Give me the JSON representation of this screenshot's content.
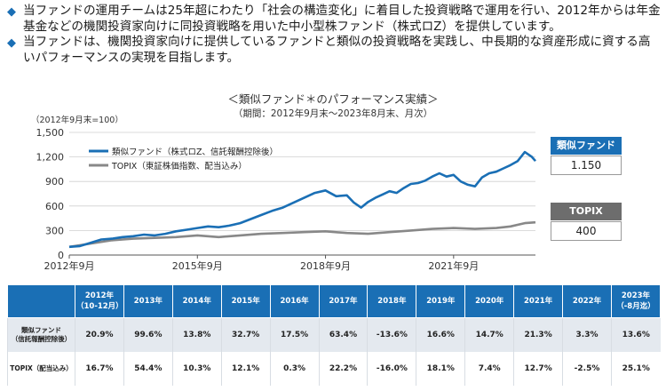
{
  "bullets": [
    "当ファンドの運用チームは25年超にわたり「社会の構造変化」に着目した投資戦略で運用を行い、2012年からは年金基金などの機関投資家向けに同投資戦略を用いた中小型株ファンド（株式ロZ）を提供しています。",
    "当ファンドは、機関投資家向けに提供しているファンドと類似の投資戦略を実践し、中長期的な資産形成に資する高いパフォーマンスの実現を目指します。"
  ],
  "bullet_mark": "◆",
  "chart_title": "＜類似ファンド＊のパフォーマンス実績＞",
  "chart_subtitle": "（期間：2012年9月末～2023年8月末、月次）",
  "unit_note": "（2012年9月末=100）",
  "colors": {
    "fund": "#1a6fb5",
    "topix": "#888888",
    "header": "#1a6fb5",
    "fund_row": "#e4e9ef"
  },
  "chart_data": {
    "type": "line",
    "ylim": [
      0,
      1500
    ],
    "yticks": [
      "0",
      "300",
      "600",
      "900",
      "1,200",
      "1,500"
    ],
    "xlabels": [
      {
        "label": "2012年9月",
        "t": 0
      },
      {
        "label": "2015年9月",
        "t": 36
      },
      {
        "label": "2018年9月",
        "t": 72
      },
      {
        "label": "2021年9月",
        "t": 108
      }
    ],
    "t_max": 131,
    "series": [
      {
        "name": "類似ファンド（株式ロZ、信託報酬控除後）",
        "color": "#1a6fb5",
        "points": [
          [
            0,
            100
          ],
          [
            3,
            110
          ],
          [
            6,
            150
          ],
          [
            9,
            190
          ],
          [
            12,
            200
          ],
          [
            15,
            220
          ],
          [
            18,
            230
          ],
          [
            21,
            250
          ],
          [
            24,
            240
          ],
          [
            27,
            260
          ],
          [
            30,
            290
          ],
          [
            33,
            310
          ],
          [
            36,
            330
          ],
          [
            39,
            350
          ],
          [
            42,
            340
          ],
          [
            45,
            360
          ],
          [
            48,
            390
          ],
          [
            51,
            440
          ],
          [
            54,
            490
          ],
          [
            57,
            540
          ],
          [
            60,
            580
          ],
          [
            63,
            640
          ],
          [
            66,
            700
          ],
          [
            69,
            760
          ],
          [
            72,
            790
          ],
          [
            75,
            720
          ],
          [
            78,
            730
          ],
          [
            80,
            640
          ],
          [
            82,
            580
          ],
          [
            84,
            650
          ],
          [
            86,
            700
          ],
          [
            88,
            740
          ],
          [
            90,
            780
          ],
          [
            92,
            760
          ],
          [
            94,
            820
          ],
          [
            96,
            870
          ],
          [
            98,
            880
          ],
          [
            100,
            910
          ],
          [
            102,
            960
          ],
          [
            104,
            1000
          ],
          [
            106,
            960
          ],
          [
            108,
            980
          ],
          [
            110,
            900
          ],
          [
            112,
            860
          ],
          [
            114,
            840
          ],
          [
            116,
            950
          ],
          [
            118,
            1000
          ],
          [
            120,
            1020
          ],
          [
            122,
            1060
          ],
          [
            124,
            1100
          ],
          [
            126,
            1150
          ],
          [
            128,
            1260
          ],
          [
            130,
            1200
          ],
          [
            131,
            1150
          ]
        ]
      },
      {
        "name": "TOPIX（東証株価指数、配当込み）",
        "color": "#888888",
        "points": [
          [
            0,
            100
          ],
          [
            6,
            140
          ],
          [
            12,
            180
          ],
          [
            18,
            200
          ],
          [
            24,
            210
          ],
          [
            30,
            220
          ],
          [
            36,
            240
          ],
          [
            42,
            220
          ],
          [
            48,
            240
          ],
          [
            54,
            260
          ],
          [
            60,
            270
          ],
          [
            66,
            280
          ],
          [
            72,
            290
          ],
          [
            78,
            270
          ],
          [
            84,
            260
          ],
          [
            90,
            280
          ],
          [
            96,
            300
          ],
          [
            102,
            320
          ],
          [
            108,
            330
          ],
          [
            114,
            320
          ],
          [
            120,
            330
          ],
          [
            124,
            350
          ],
          [
            128,
            390
          ],
          [
            131,
            400
          ]
        ]
      }
    ]
  },
  "badges": [
    {
      "label": "類似ファンド",
      "value": "1.150"
    },
    {
      "label": "TOPIX",
      "value": "400"
    }
  ],
  "table": {
    "headers": [
      "2012年\n（10-12月）",
      "2013年",
      "2014年",
      "2015年",
      "2016年",
      "2017年",
      "2018年",
      "2019年",
      "2020年",
      "2021年",
      "2022年",
      "2023年\n（-8月迄）"
    ],
    "rows": [
      {
        "label": "類似ファンド\n（信託報酬控除後）",
        "values": [
          "20.9%",
          "99.6%",
          "13.8%",
          "32.7%",
          "17.5%",
          "63.4%",
          "-13.6%",
          "16.6%",
          "14.7%",
          "21.3%",
          "3.3%",
          "13.6%"
        ]
      },
      {
        "label": "TOPIX（配当込み）",
        "values": [
          "16.7%",
          "54.4%",
          "10.3%",
          "12.1%",
          "0.3%",
          "22.2%",
          "-16.0%",
          "18.1%",
          "7.4%",
          "12.7%",
          "-2.5%",
          "25.1%"
        ]
      }
    ]
  }
}
